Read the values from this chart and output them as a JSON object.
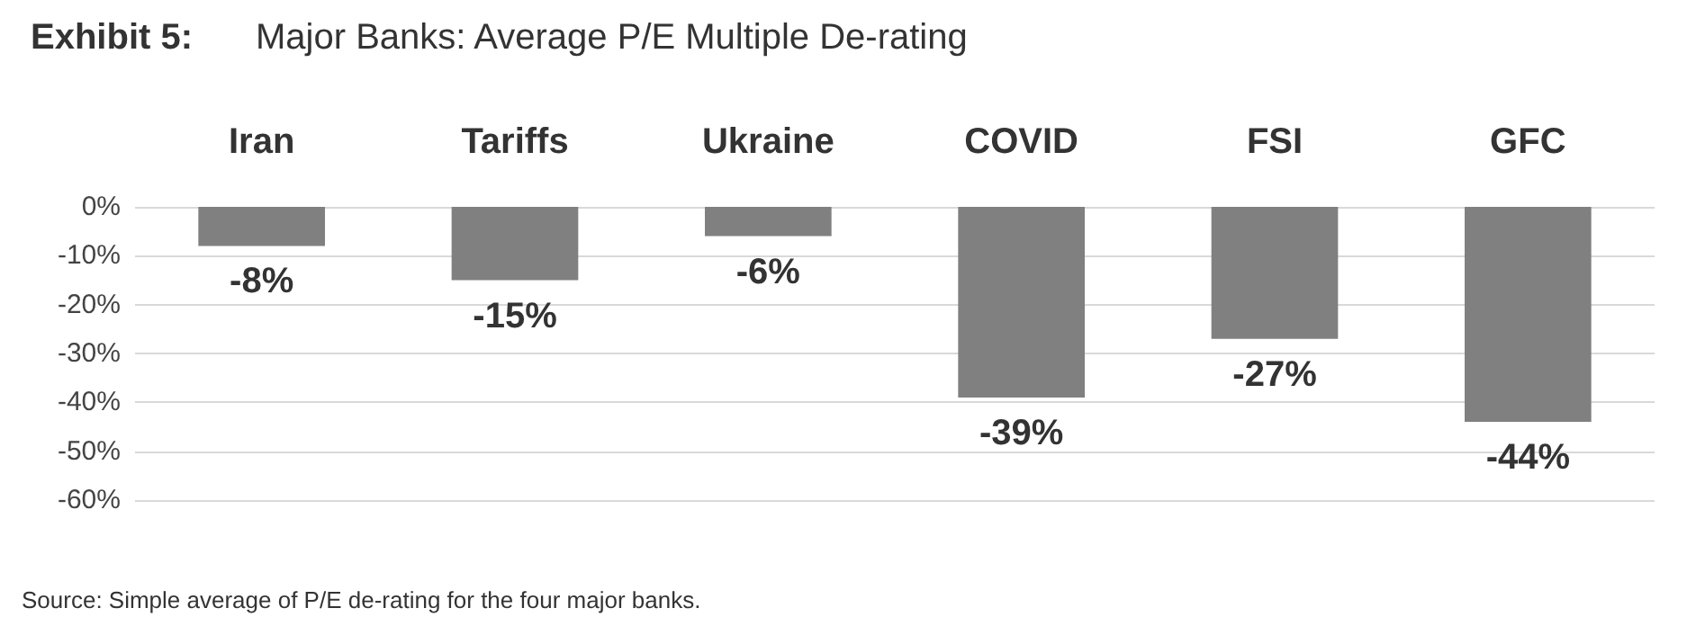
{
  "chart_data": {
    "type": "bar",
    "title": "Exhibit 5:",
    "subtitle": "Major Banks: Average P/E Multiple De-rating",
    "categories": [
      "Iran",
      "Tariffs",
      "Ukraine",
      "COVID",
      "FSI",
      "GFC"
    ],
    "values": [
      -8,
      -15,
      -6,
      -39,
      -27,
      -44
    ],
    "color": "#808080",
    "value_labels": [
      "-8%",
      "-15%",
      "-6%",
      "-39%",
      "-27%",
      "-44%"
    ],
    "ylim": [
      -60,
      0
    ],
    "yticks": [
      {
        "value": -60,
        "label": "-60%"
      },
      {
        "value": -50,
        "label": "-50%"
      },
      {
        "value": -40,
        "label": "-40%"
      },
      {
        "value": -30,
        "label": "-30%"
      },
      {
        "value": -20,
        "label": "-20%"
      },
      {
        "value": -10,
        "label": "-10%"
      },
      {
        "value": 0,
        "label": "0%"
      }
    ],
    "grid": "y",
    "annotations": [
      "Source: Simple average of P/E de-rating for the four major banks."
    ]
  }
}
